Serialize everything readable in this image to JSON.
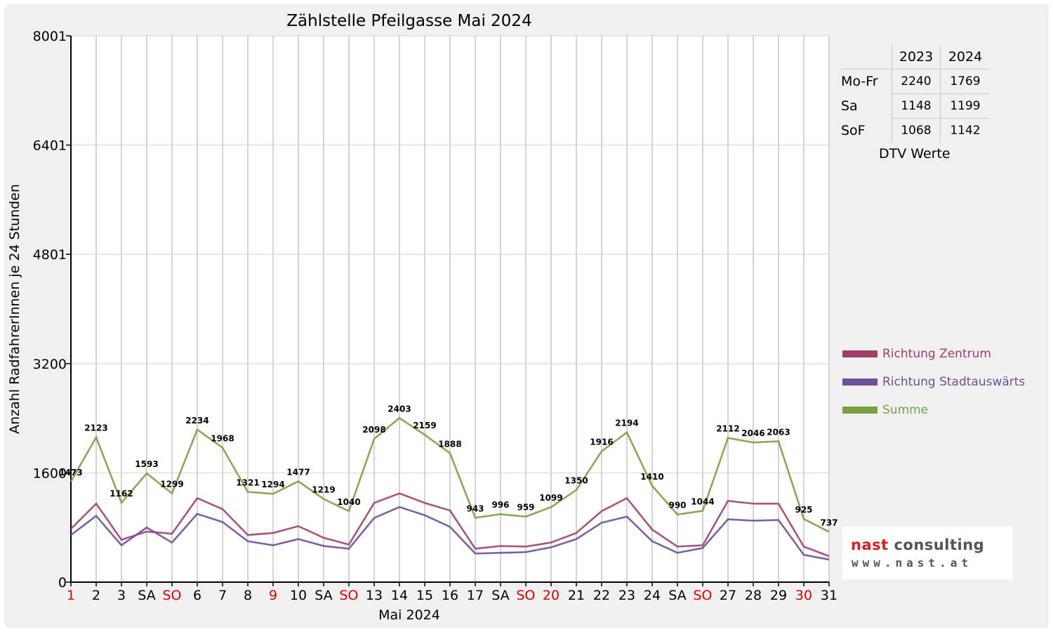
{
  "chart_data": {
    "type": "line",
    "title": "Zählstelle Pfeilgasse Mai 2024",
    "xlabel": "Mai 2024",
    "ylabel": "Anzahl RadfahrerInnen je 24 Stunden",
    "ylim": [
      0,
      8001
    ],
    "yticks": [
      "8001",
      "6401",
      "4801",
      "3200",
      "1600",
      "0"
    ],
    "ytick_values": [
      8001,
      6401,
      4801,
      3200,
      1600,
      0
    ],
    "grid": true,
    "legend_position": "right",
    "categories": [
      "1",
      "2",
      "3",
      "SA",
      "SO",
      "6",
      "7",
      "8",
      "9",
      "10",
      "SA",
      "SO",
      "13",
      "14",
      "15",
      "16",
      "17",
      "SA",
      "SO",
      "20",
      "21",
      "22",
      "23",
      "24",
      "SA",
      "SO",
      "27",
      "28",
      "29",
      "30",
      "31"
    ],
    "red_categories": [
      0,
      4,
      8,
      11,
      18,
      19,
      25,
      29
    ],
    "series": [
      {
        "name": "Richtung Zentrum",
        "color": "#a0406a",
        "values": [
          780,
          1150,
          620,
          740,
          710,
          1230,
          1070,
          690,
          720,
          820,
          650,
          550,
          1160,
          1300,
          1160,
          1050,
          490,
          530,
          520,
          580,
          720,
          1040,
          1230,
          770,
          520,
          540,
          1190,
          1150,
          1150,
          520,
          380
        ]
      },
      {
        "name": "Richtung Stadtauswärts",
        "color": "#6a4f9c",
        "values": [
          690,
          970,
          540,
          800,
          580,
          1000,
          880,
          600,
          540,
          630,
          530,
          490,
          940,
          1100,
          980,
          810,
          420,
          430,
          440,
          510,
          630,
          870,
          960,
          600,
          430,
          500,
          920,
          900,
          910,
          400,
          330
        ]
      },
      {
        "name": "Summe",
        "color": "#78a040",
        "values": [
          1473,
          2123,
          1162,
          1593,
          1299,
          2234,
          1968,
          1321,
          1294,
          1477,
          1219,
          1040,
          2098,
          2403,
          2159,
          1888,
          943,
          996,
          959,
          1099,
          1350,
          1916,
          2194,
          1410,
          990,
          1044,
          2112,
          2046,
          2063,
          925,
          737
        ],
        "labels": [
          "1473",
          "2123",
          "1162",
          "1593",
          "1299",
          "2234",
          "1968",
          "1321",
          "1294",
          "1477",
          "1219",
          "1040",
          "2098",
          "2403",
          "2159",
          "1888",
          "943",
          "996",
          "959",
          "1099",
          "1350",
          "1916",
          "2194",
          "1410",
          "990",
          "1044",
          "2112",
          "2046",
          "2063",
          "925",
          "737"
        ]
      }
    ]
  },
  "dtv_table": {
    "headers": [
      "",
      "2023",
      "2024"
    ],
    "rows": [
      {
        "label": "Mo-Fr",
        "v2023": "2240",
        "v2024": "1769"
      },
      {
        "label": "Sa",
        "v2023": "1148",
        "v2024": "1199"
      },
      {
        "label": "SoF",
        "v2023": "1068",
        "v2024": "1142"
      }
    ],
    "caption": "DTV Werte"
  },
  "legend": {
    "items": [
      {
        "label": "Richtung Zentrum",
        "color": "#a0406a"
      },
      {
        "label": "Richtung Stadtauswärts",
        "color": "#6a4f9c"
      },
      {
        "label": "Summe",
        "color": "#78a040"
      }
    ]
  },
  "logo": {
    "line1_a": "nast",
    "line1_b": "consulting",
    "line2": "www.nast.at"
  }
}
